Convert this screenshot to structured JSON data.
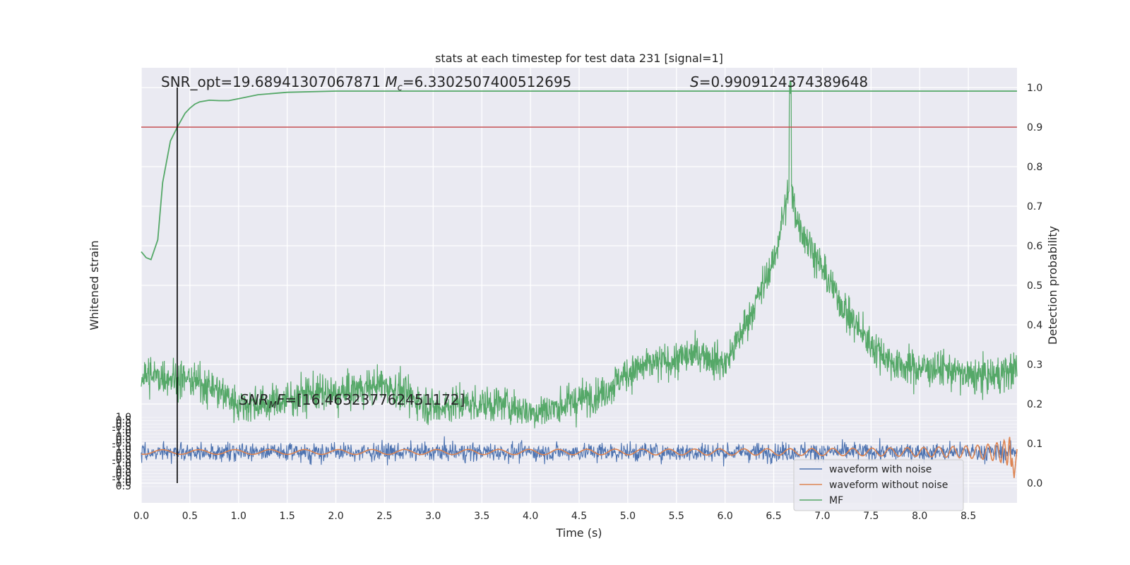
{
  "chart_data": {
    "type": "line",
    "title": "stats at each timestep for test data 231 [signal=1]",
    "xlabel": "Time (s)",
    "ylabel_left": "Whitened strain",
    "ylabel_right": "Detection probability",
    "xlim": [
      0,
      9.0
    ],
    "x_ticks": [
      "0.0",
      "0.5",
      "1.0",
      "1.5",
      "2.0",
      "2.5",
      "3.0",
      "3.5",
      "4.0",
      "4.5",
      "5.0",
      "5.5",
      "6.0",
      "6.5",
      "7.0",
      "7.5",
      "8.0",
      "8.5"
    ],
    "right_ylim": [
      -0.05,
      1.05
    ],
    "right_y_ticks": [
      "0.0",
      "0.1",
      "0.2",
      "0.3",
      "0.4",
      "0.5",
      "0.6",
      "0.7",
      "0.8",
      "0.9",
      "1.0"
    ],
    "left_ylim": [
      -1.2,
      1.2
    ],
    "left_y_ticks": [
      "1.0",
      "0.5",
      "0.0",
      "-0.5",
      "-1.0"
    ],
    "grid": true,
    "legend_position": "bottom-right",
    "annotations": {
      "snr_opt": "SNR_opt=19.68941307067871",
      "mc_symbol": "M",
      "mc_sub": "c",
      "mc_value": "=6.3302507400512695",
      "s_symbol": "S",
      "s_value": "=0.9909124374389648",
      "snr_mf_prefix": "SNR",
      "snr_mf_sub": "M",
      "snr_mf_f": "F",
      "snr_mf_value": "=[16.463237762451172]"
    },
    "threshold": {
      "value": 0.9,
      "color": "#c44e52"
    },
    "marker_time": 0.37,
    "series": [
      {
        "name": "waveform with noise",
        "color": "#4c72b0",
        "noise_amplitude": 0.45
      },
      {
        "name": "waveform without noise",
        "color": "#dd8452",
        "chirp_end_time": 8.95
      },
      {
        "name": "MF",
        "color": "#55a868",
        "x": [
          0.0,
          0.25,
          0.5,
          0.75,
          1.0,
          1.25,
          1.5,
          1.75,
          2.0,
          2.25,
          2.5,
          2.75,
          3.0,
          3.25,
          3.5,
          3.75,
          4.0,
          4.25,
          4.5,
          4.75,
          5.0,
          5.25,
          5.5,
          5.75,
          6.0,
          6.25,
          6.5,
          6.6,
          6.67,
          6.75,
          7.0,
          7.25,
          7.5,
          7.75,
          8.0,
          8.25,
          8.5,
          8.75,
          9.0
        ],
        "values": [
          0.27,
          0.27,
          0.26,
          0.24,
          0.2,
          0.2,
          0.21,
          0.23,
          0.22,
          0.24,
          0.25,
          0.22,
          0.19,
          0.2,
          0.2,
          0.2,
          0.18,
          0.19,
          0.21,
          0.23,
          0.28,
          0.3,
          0.31,
          0.33,
          0.3,
          0.42,
          0.56,
          0.68,
          0.75,
          0.66,
          0.54,
          0.43,
          0.35,
          0.3,
          0.29,
          0.29,
          0.27,
          0.27,
          0.29
        ]
      },
      {
        "name": "Detection probability",
        "color": "#55a868",
        "x": [
          0.0,
          0.05,
          0.1,
          0.17,
          0.22,
          0.3,
          0.37,
          0.45,
          0.5,
          0.55,
          0.6,
          0.7,
          0.8,
          0.9,
          1.0,
          1.2,
          1.5,
          2.0,
          3.0,
          5.0,
          7.0,
          9.0
        ],
        "values": [
          0.585,
          0.57,
          0.565,
          0.615,
          0.76,
          0.865,
          0.9,
          0.935,
          0.948,
          0.958,
          0.964,
          0.968,
          0.967,
          0.967,
          0.972,
          0.982,
          0.988,
          0.991,
          0.991,
          0.991,
          0.991,
          0.991
        ]
      }
    ]
  }
}
